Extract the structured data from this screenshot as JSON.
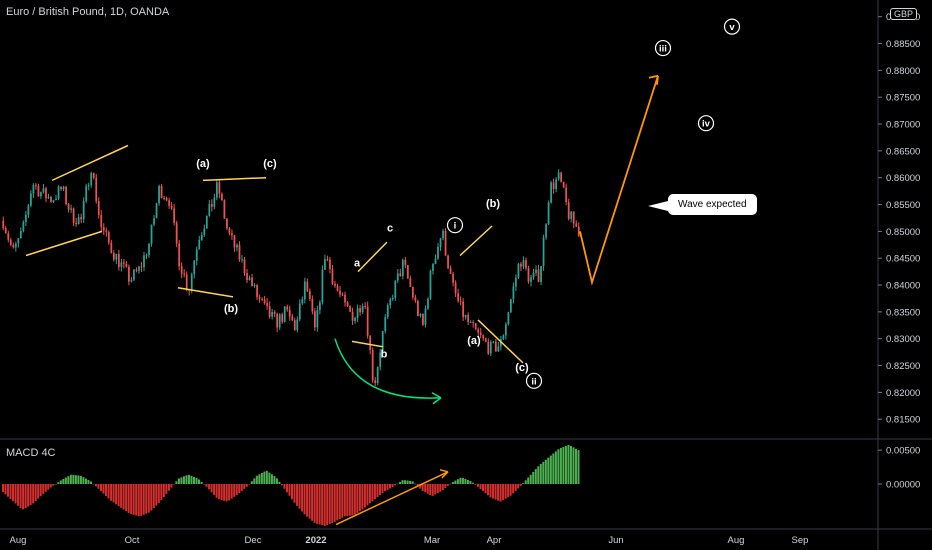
{
  "title": "Euro / British Pound, 1D, OANDA",
  "currency_badge": "GBP",
  "callout_text": "Wave expected",
  "colors": {
    "background": "#000000",
    "candle_up": "#26a69a",
    "candle_down": "#ef5350",
    "channel_lines": "#ffd54f",
    "projection": "#ff9800",
    "arrow_green": "#00e676",
    "macd_positive": "#4caf50",
    "macd_negative": "#d32f2f",
    "macd_divergence": "#ff9800"
  },
  "chart_data": [
    {
      "type": "candlestick",
      "title": "Euro / British Pound, 1D, OANDA",
      "y_unit": "GBP",
      "ylim": [
        0.8115,
        0.8905
      ],
      "y_ticks": [
        "0.89000",
        "0.88500",
        "0.88000",
        "0.87500",
        "0.87000",
        "0.86500",
        "0.86000",
        "0.85500",
        "0.85000",
        "0.84500",
        "0.84000",
        "0.83500",
        "0.83000",
        "0.82500",
        "0.82000",
        "0.81500"
      ],
      "x_ticks": [
        "Aug",
        "Oct",
        "Dec",
        "2022",
        "Mar",
        "Apr",
        "Jun",
        "Aug",
        "Sep"
      ],
      "price_path": [
        [
          "Aug",
          0.852
        ],
        [
          "Aug",
          0.846
        ],
        [
          "Aug",
          0.85
        ],
        [
          "Aug",
          0.859
        ],
        [
          "Aug",
          0.857
        ],
        [
          "Aug",
          0.856
        ],
        [
          "Aug",
          0.858
        ],
        [
          "Aug",
          0.853
        ],
        [
          "Sep",
          0.852
        ],
        [
          "Sep",
          0.8625
        ],
        [
          "Oct",
          0.851
        ],
        [
          "Oct",
          0.847
        ],
        [
          "Oct",
          0.844
        ],
        [
          "Oct",
          0.841
        ],
        [
          "Oct",
          0.843
        ],
        [
          "Nov",
          0.848
        ],
        [
          "Nov",
          0.858
        ],
        [
          "Nov",
          0.856
        ],
        [
          "Nov",
          0.845
        ],
        [
          "Nov",
          0.839
        ],
        [
          "Dec",
          0.849
        ],
        [
          "Dec",
          0.853
        ],
        [
          "Dec",
          0.8585
        ],
        [
          "Dec",
          0.85
        ],
        [
          "Dec",
          0.846
        ],
        [
          "Dec",
          0.842
        ],
        [
          "Jan",
          0.838
        ],
        [
          "Jan",
          0.835
        ],
        [
          "Jan",
          0.833
        ],
        [
          "Jan",
          0.835
        ],
        [
          "Jan",
          0.832
        ],
        [
          "Feb",
          0.8405
        ],
        [
          "Feb",
          0.831
        ],
        [
          "Feb",
          0.846
        ],
        [
          "Feb",
          0.84
        ],
        [
          "Feb",
          0.836
        ],
        [
          "Mar",
          0.834
        ],
        [
          "Mar",
          0.838
        ],
        [
          "Mar",
          0.821
        ],
        [
          "Mar",
          0.832
        ],
        [
          "Mar",
          0.839
        ],
        [
          "Mar",
          0.844
        ],
        [
          "Mar",
          0.838
        ],
        [
          "Mar",
          0.832
        ],
        [
          "Apr",
          0.844
        ],
        [
          "Apr",
          0.85
        ],
        [
          "Apr",
          0.84
        ],
        [
          "Apr",
          0.835
        ],
        [
          "Apr",
          0.832
        ],
        [
          "Apr",
          0.83
        ],
        [
          "Apr",
          0.828
        ],
        [
          "Apr",
          0.829
        ],
        [
          "Apr",
          0.837
        ],
        [
          "Apr",
          0.845
        ],
        [
          "Apr",
          0.841
        ],
        [
          "May",
          0.842
        ],
        [
          "May",
          0.858
        ],
        [
          "May",
          0.86
        ],
        [
          "May",
          0.853
        ],
        [
          "May",
          0.85
        ]
      ],
      "projection_path": [
        0.85,
        0.8405,
        0.879
      ],
      "wave_labels": [
        {
          "text": "(a)",
          "price": 0.862,
          "x_label": "Nov"
        },
        {
          "text": "(c)",
          "price": 0.862,
          "x_label": "Dec"
        },
        {
          "text": "(b)",
          "price": 0.835,
          "x_label": "Nov"
        },
        {
          "text": "a",
          "price": 0.8435,
          "x_label": "Feb"
        },
        {
          "text": "c",
          "price": 0.85,
          "x_label": "Feb"
        },
        {
          "text": "b",
          "price": 0.8265,
          "x_label": "Feb"
        },
        {
          "text": "i",
          "price": 0.8505,
          "x_label": "Mar",
          "circled": true
        },
        {
          "text": "(b)",
          "price": 0.8545,
          "x_label": "Apr"
        },
        {
          "text": "(a)",
          "price": 0.829,
          "x_label": "Mar"
        },
        {
          "text": "(c)",
          "price": 0.824,
          "x_label": "Apr"
        },
        {
          "text": "ii",
          "price": 0.8215,
          "x_label": "Apr",
          "circled": true
        },
        {
          "text": "iii",
          "price": 0.8835,
          "x_label": "Jun",
          "circled": true
        },
        {
          "text": "iv",
          "price": 0.8695,
          "x_label": "Aug",
          "circled": true
        },
        {
          "text": "v",
          "price": 0.8875,
          "x_label": "Aug",
          "circled": true
        }
      ]
    },
    {
      "type": "bar",
      "title": "MACD 4C",
      "y_ticks": [
        "0.00500",
        "0.00000"
      ],
      "ylim": [
        -0.0065,
        0.0065
      ],
      "values": [
        -0.0012,
        -0.0025,
        -0.0038,
        -0.003,
        -0.0016,
        -0.0004,
        0.0006,
        0.0014,
        0.0012,
        0.0004,
        -0.001,
        -0.0024,
        -0.0034,
        -0.0044,
        -0.0048,
        -0.0042,
        -0.0028,
        -0.001,
        0.0008,
        0.0014,
        0.0008,
        -0.0006,
        -0.0022,
        -0.0026,
        -0.0016,
        -0.0004,
        0.0012,
        0.002,
        0.001,
        -0.001,
        -0.003,
        -0.0046,
        -0.0058,
        -0.0062,
        -0.0056,
        -0.0048,
        -0.0046,
        -0.0036,
        -0.0024,
        -0.0012,
        -0.0004,
        0.0006,
        0.0004,
        -0.001,
        -0.0018,
        -0.001,
        0.0002,
        0.001,
        0.0004,
        -0.0008,
        -0.002,
        -0.0026,
        -0.0018,
        -0.0004,
        0.0012,
        0.0028,
        0.004,
        0.0052,
        0.0058,
        0.005
      ]
    }
  ]
}
